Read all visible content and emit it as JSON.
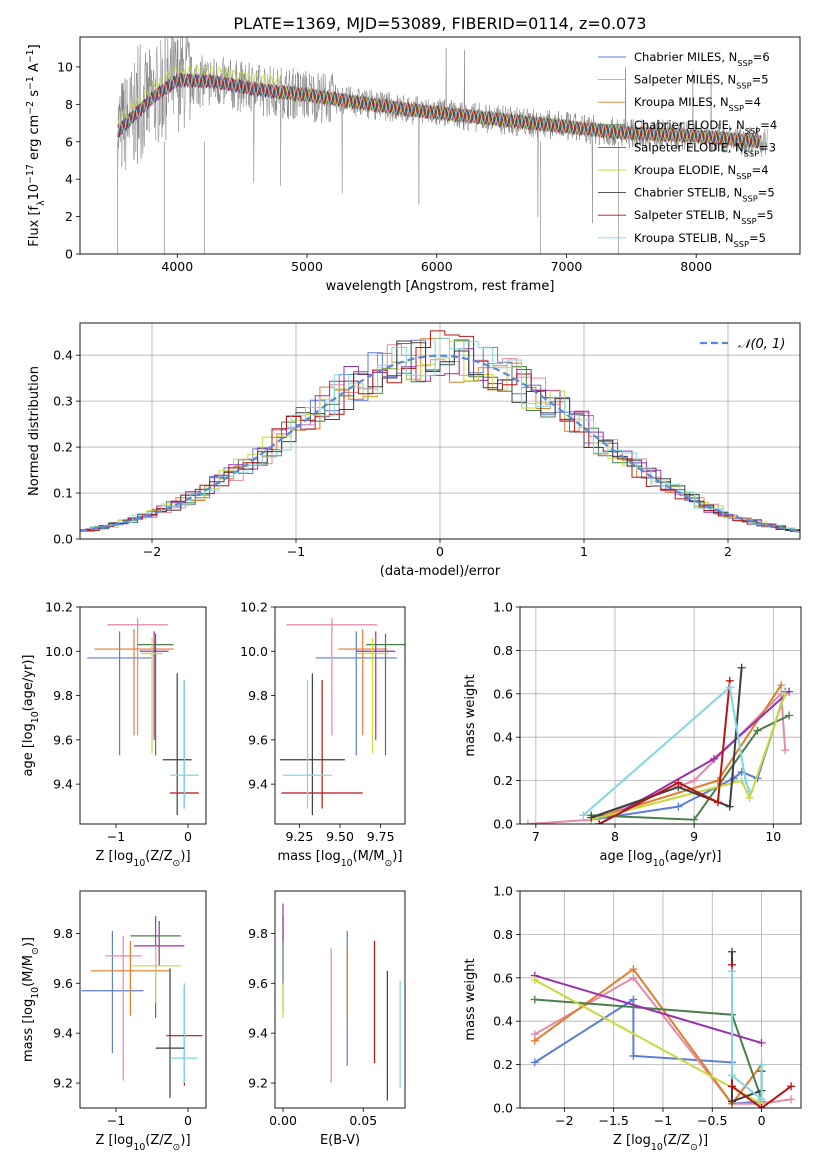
{
  "figure_title": "PLATE=1369, MJD=53089, FIBERID=0114, z=0.073",
  "palette": [
    "#5b7fd8",
    "#e48aa8",
    "#e07e2a",
    "#4a7f4a",
    "#9b2fae",
    "#c9d93b",
    "#3f3f3f",
    "#b71515",
    "#7fd7e0"
  ],
  "legend_names": [
    {
      "pre": "Chabrier MILES, N",
      "sub": "SSP",
      "post": "=6"
    },
    {
      "pre": "Salpeter MILES, N",
      "sub": "SSP",
      "post": "=5"
    },
    {
      "pre": "Kroupa MILES, N",
      "sub": "SSP",
      "post": "=4"
    },
    {
      "pre": "Chabrier ELODIE, N",
      "sub": "SSP",
      "post": "=4"
    },
    {
      "pre": "Salpeter ELODIE, N",
      "sub": "SSP",
      "post": "=3"
    },
    {
      "pre": "Kroupa ELODIE, N",
      "sub": "SSP",
      "post": "=4"
    },
    {
      "pre": "Chabrier STELIB, N",
      "sub": "SSP",
      "post": "=5"
    },
    {
      "pre": "Salpeter STELIB, N",
      "sub": "SSP",
      "post": "=5"
    },
    {
      "pre": "Kroupa STELIB, N",
      "sub": "SSP",
      "post": "=5"
    }
  ],
  "chart_data": [
    {
      "id": "spectrum",
      "type": "line",
      "xlabel": "wavelength [Angstrom, rest frame]",
      "ylabel": {
        "a": "Flux [f",
        "b": "λ",
        "c": "10",
        "d": "−17",
        "e": " erg cm",
        "f": "−2",
        "g": " s",
        "h": "−1",
        "i": " A",
        "j": "−1",
        "k": "]"
      },
      "xlim": [
        3250,
        8800
      ],
      "ylim": [
        0,
        11.6
      ],
      "xticks": [
        4000,
        5000,
        6000,
        7000,
        8000
      ],
      "yticks": [
        0,
        2,
        4,
        6,
        8,
        10
      ],
      "legend_position": "upper right",
      "data_color": "#808080",
      "continuum": [
        [
          3550,
          6.6
        ],
        [
          3800,
          8.3
        ],
        [
          4000,
          9.3
        ],
        [
          4300,
          9.2
        ],
        [
          4600,
          8.8
        ],
        [
          5000,
          8.5
        ],
        [
          5400,
          8.1
        ],
        [
          5800,
          7.7
        ],
        [
          6200,
          7.4
        ],
        [
          6600,
          7.1
        ],
        [
          7000,
          6.8
        ],
        [
          7400,
          6.5
        ],
        [
          8000,
          6.3
        ],
        [
          8500,
          6.0
        ]
      ],
      "data_start": 3540,
      "data_end": 8550,
      "model_start": 3540,
      "model_end": 8500
    },
    {
      "id": "residuals",
      "type": "histogram",
      "xlabel": "(data-model)/error",
      "ylabel": "Normed distribution",
      "xlim": [
        -2.5,
        2.5
      ],
      "ylim": [
        0,
        0.47
      ],
      "xticks": [
        -2,
        -1,
        0,
        1,
        2
      ],
      "yticks": [
        0.0,
        0.1,
        0.2,
        0.3,
        0.4
      ],
      "grid": true,
      "legend": {
        "label": "𝒩(0, 1)",
        "color": "#5a8ad6",
        "position": "upper right"
      },
      "bin_width": 0.1
    },
    {
      "id": "age_vs_Z",
      "type": "errorbar",
      "xlabel": {
        "pre": "Z [log",
        "sub": "10",
        "post": "(Z/Z",
        "sub2": "⊙",
        "post2": ")]"
      },
      "ylabel": {
        "pre": "age  [log",
        "sub": "10",
        "post": "(age/yr)]"
      },
      "xlim": [
        -1.5,
        0.25
      ],
      "ylim": [
        9.22,
        10.2
      ],
      "xticks": [
        -1,
        0
      ],
      "yticks": [
        9.4,
        9.6,
        9.8,
        10.0,
        10.2
      ],
      "points": [
        {
          "c": 0,
          "x": -0.95,
          "y": 9.97,
          "xerr": 0.45,
          "yerr": [
            0.44,
            0.12
          ]
        },
        {
          "c": 1,
          "x": -0.7,
          "y": 10.12,
          "xerr": 0.42,
          "yerr": [
            0.5,
            0.03
          ]
        },
        {
          "c": 2,
          "x": -0.75,
          "y": 10.01,
          "xerr": 0.55,
          "yerr": [
            0.39,
            0.09
          ]
        },
        {
          "c": 3,
          "x": -0.45,
          "y": 10.03,
          "xerr": 0.25,
          "yerr": [
            0.5,
            0.05
          ]
        },
        {
          "c": 4,
          "x": -0.47,
          "y": 10.0,
          "xerr": 0.2,
          "yerr": [
            0.4,
            0.09
          ]
        },
        {
          "c": 5,
          "x": -0.5,
          "y": 9.99,
          "xerr": 0.15,
          "yerr": [
            0.45,
            0.07
          ]
        },
        {
          "c": 6,
          "x": -0.15,
          "y": 9.51,
          "xerr": 0.2,
          "yerr": [
            0.25,
            0.39
          ]
        },
        {
          "c": 7,
          "x": -0.05,
          "y": 9.36,
          "xerr": 0.2,
          "yerr": [
            0.07,
            0.51
          ]
        },
        {
          "c": 8,
          "x": -0.05,
          "y": 9.44,
          "xerr": 0.2,
          "yerr": [
            0.15,
            0.43
          ]
        }
      ]
    },
    {
      "id": "age_vs_mass",
      "type": "errorbar",
      "xlabel": {
        "pre": "mass [log",
        "sub": "10",
        "post": "(M/M",
        "sub2": "⊙",
        "post2": ")]"
      },
      "ylabel": {
        "pre": "",
        "sub": "",
        "post": ""
      },
      "xlim": [
        9.1,
        9.9
      ],
      "ylim": [
        9.22,
        10.2
      ],
      "xticks": [
        9.25,
        9.5,
        9.75
      ],
      "xticklabels": [
        "9.25",
        "9.50",
        "9.75"
      ],
      "yticks": [
        9.4,
        9.6,
        9.8,
        10.0,
        10.2
      ],
      "points": [
        {
          "c": 0,
          "x": 9.6,
          "y": 9.97,
          "xerr": 0.25,
          "yerr": [
            0.44,
            0.12
          ]
        },
        {
          "c": 1,
          "x": 9.45,
          "y": 10.12,
          "xerr": 0.28,
          "yerr": [
            0.5,
            0.03
          ]
        },
        {
          "c": 2,
          "x": 9.64,
          "y": 10.01,
          "xerr": 0.15,
          "yerr": [
            0.39,
            0.09
          ]
        },
        {
          "c": 3,
          "x": 9.78,
          "y": 10.03,
          "xerr": 0.12,
          "yerr": [
            0.5,
            0.05
          ]
        },
        {
          "c": 4,
          "x": 9.72,
          "y": 10.0,
          "xerr": 0.12,
          "yerr": [
            0.4,
            0.09
          ]
        },
        {
          "c": 5,
          "x": 9.7,
          "y": 9.99,
          "xerr": 0.1,
          "yerr": [
            0.45,
            0.07
          ]
        },
        {
          "c": 6,
          "x": 9.33,
          "y": 9.51,
          "xerr": 0.2,
          "yerr": [
            0.25,
            0.39
          ]
        },
        {
          "c": 7,
          "x": 9.39,
          "y": 9.36,
          "xerr": 0.25,
          "yerr": [
            0.07,
            0.51
          ]
        },
        {
          "c": 8,
          "x": 9.3,
          "y": 9.44,
          "xerr": 0.15,
          "yerr": [
            0.15,
            0.43
          ]
        }
      ]
    },
    {
      "id": "weight_vs_age",
      "type": "line",
      "xlabel": {
        "pre": "age  [log",
        "sub": "10",
        "post": "(age/yr)]"
      },
      "ylabel": "mass weight",
      "xlim": [
        6.8,
        10.35
      ],
      "ylim": [
        0,
        1.0
      ],
      "xticks": [
        7,
        8,
        9,
        10
      ],
      "yticks": [
        0.0,
        0.2,
        0.4,
        0.6,
        0.8,
        1.0
      ],
      "grid": true,
      "series": [
        {
          "c": 0,
          "x": [
            7.7,
            8.8,
            9.5,
            9.6,
            9.8,
            10.15
          ],
          "y": [
            0.02,
            0.08,
            0.21,
            0.24,
            0.21,
            0.61
          ]
        },
        {
          "c": 1,
          "x": [
            6.9,
            7.7,
            9.0,
            10.1,
            10.15
          ],
          "y": [
            0.0,
            0.02,
            0.2,
            0.6,
            0.34
          ]
        },
        {
          "c": 2,
          "x": [
            7.7,
            9.3,
            10.1
          ],
          "y": [
            0.02,
            0.2,
            0.64
          ]
        },
        {
          "c": 3,
          "x": [
            7.7,
            9.0,
            9.8,
            10.2
          ],
          "y": [
            0.04,
            0.02,
            0.43,
            0.5
          ]
        },
        {
          "c": 4,
          "x": [
            7.8,
            9.25,
            10.2
          ],
          "y": [
            0.0,
            0.3,
            0.61
          ]
        },
        {
          "c": 5,
          "x": [
            7.7,
            9.6,
            9.7,
            10.15
          ],
          "y": [
            0.02,
            0.2,
            0.12,
            0.6
          ]
        },
        {
          "c": 6,
          "x": [
            7.7,
            8.8,
            9.45,
            9.6
          ],
          "y": [
            0.03,
            0.17,
            0.08,
            0.72
          ]
        },
        {
          "c": 7,
          "x": [
            7.8,
            8.8,
            9.3,
            9.45
          ],
          "y": [
            0.0,
            0.19,
            0.1,
            0.66
          ]
        },
        {
          "c": 8,
          "x": [
            7.6,
            9.45,
            9.65,
            9.7
          ],
          "y": [
            0.04,
            0.63,
            0.2,
            0.15
          ]
        }
      ]
    },
    {
      "id": "mass_vs_Z",
      "type": "errorbar",
      "xlabel": {
        "pre": "Z [log",
        "sub": "10",
        "post": "(Z/Z",
        "sub2": "⊙",
        "post2": ")]"
      },
      "ylabel": {
        "pre": "mass [log",
        "sub": "10",
        "post": "(M/M",
        "sub2": "⊙",
        "post2": ")]"
      },
      "xlim": [
        -1.5,
        0.25
      ],
      "ylim": [
        9.1,
        9.97
      ],
      "xticks": [
        -1,
        0
      ],
      "yticks": [
        9.2,
        9.4,
        9.6,
        9.8
      ],
      "points": [
        {
          "c": 0,
          "x": -1.05,
          "y": 9.57,
          "xerr": 0.43,
          "yerr": [
            0.25,
            0.24
          ]
        },
        {
          "c": 1,
          "x": -0.9,
          "y": 9.71,
          "xerr": 0.25,
          "yerr": [
            0.5,
            0.08
          ]
        },
        {
          "c": 2,
          "x": -0.8,
          "y": 9.65,
          "xerr": 0.55,
          "yerr": [
            0.18,
            0.12
          ]
        },
        {
          "c": 3,
          "x": -0.45,
          "y": 9.79,
          "xerr": 0.35,
          "yerr": [
            0.33,
            0.08
          ]
        },
        {
          "c": 4,
          "x": -0.4,
          "y": 9.75,
          "xerr": 0.35,
          "yerr": [
            0.08,
            0.1
          ]
        },
        {
          "c": 5,
          "x": -0.45,
          "y": 9.67,
          "xerr": 0.35,
          "yerr": [
            0.15,
            0.08
          ]
        },
        {
          "c": 6,
          "x": -0.25,
          "y": 9.34,
          "xerr": 0.2,
          "yerr": [
            0.2,
            0.32
          ]
        },
        {
          "c": 7,
          "x": -0.05,
          "y": 9.39,
          "xerr": 0.25,
          "yerr": [
            0.2,
            0.2
          ]
        },
        {
          "c": 8,
          "x": -0.05,
          "y": 9.3,
          "xerr": 0.18,
          "yerr": [
            0.1,
            0.3
          ]
        }
      ]
    },
    {
      "id": "mass_vs_ebv",
      "type": "errorbar",
      "xlabel": "E(B-V)",
      "ylabel": "",
      "xlim": [
        -0.005,
        0.076
      ],
      "ylim": [
        9.1,
        9.97
      ],
      "xticks": [
        0.0,
        0.05
      ],
      "xticklabels": [
        "0.00",
        "0.05"
      ],
      "yticks": [
        9.2,
        9.4,
        9.6,
        9.8
      ],
      "points": [
        {
          "c": 0,
          "x": 0.04,
          "y": 9.57,
          "xerr": 0,
          "yerr": [
            0.3,
            0.24
          ]
        },
        {
          "c": 1,
          "x": 0.03,
          "y": 9.46,
          "xerr": 0,
          "yerr": [
            0.26,
            0.28
          ]
        },
        {
          "c": 2,
          "x": 0.04,
          "y": 9.6,
          "xerr": 0,
          "yerr": [
            0.14,
            0.14
          ]
        },
        {
          "c": 3,
          "x": 0.0,
          "y": 9.79,
          "xerr": 0,
          "yerr": [
            0.3,
            0.08
          ]
        },
        {
          "c": 4,
          "x": 0.0,
          "y": 9.83,
          "xerr": 0,
          "yerr": [
            0.06,
            0.09
          ]
        },
        {
          "c": 5,
          "x": 0.0,
          "y": 9.5,
          "xerr": 0,
          "yerr": [
            0.04,
            0.1
          ]
        },
        {
          "c": 6,
          "x": 0.065,
          "y": 9.4,
          "xerr": 0,
          "yerr": [
            0.27,
            0.25
          ]
        },
        {
          "c": 7,
          "x": 0.057,
          "y": 9.52,
          "xerr": 0,
          "yerr": [
            0.24,
            0.25
          ]
        },
        {
          "c": 8,
          "x": 0.073,
          "y": 9.4,
          "xerr": 0,
          "yerr": [
            0.22,
            0.21
          ]
        }
      ]
    },
    {
      "id": "weight_vs_Z",
      "type": "line",
      "xlabel": {
        "pre": "Z [log",
        "sub": "10",
        "post": "(Z/Z",
        "sub2": "⊙",
        "post2": ")]"
      },
      "ylabel": "mass weight",
      "xlim": [
        -2.45,
        0.4
      ],
      "ylim": [
        0,
        1.0
      ],
      "xticks": [
        -2.0,
        -1.5,
        -1.0,
        -0.5,
        0.0
      ],
      "yticks": [
        0.0,
        0.2,
        0.4,
        0.6,
        0.8,
        1.0
      ],
      "grid": true,
      "series": [
        {
          "c": 0,
          "x": [
            -2.3,
            -1.3,
            -1.3,
            -0.3,
            -0.3,
            0.0
          ],
          "y": [
            0.21,
            0.5,
            0.24,
            0.21,
            0.02,
            0.03
          ]
        },
        {
          "c": 1,
          "x": [
            -2.3,
            -1.3,
            -0.3,
            0.0,
            0.3
          ],
          "y": [
            0.34,
            0.6,
            0.02,
            0.02,
            0.04
          ]
        },
        {
          "c": 2,
          "x": [
            -2.3,
            -1.3,
            -0.3,
            0.0
          ],
          "y": [
            0.31,
            0.64,
            0.02,
            0.2
          ]
        },
        {
          "c": 3,
          "x": [
            -2.3,
            -0.3,
            0.0
          ],
          "y": [
            0.5,
            0.43,
            0.04
          ]
        },
        {
          "c": 4,
          "x": [
            -2.3,
            0.0
          ],
          "y": [
            0.61,
            0.3
          ]
        },
        {
          "c": 5,
          "x": [
            -2.3,
            0.0,
            0.0
          ],
          "y": [
            0.59,
            0.02,
            0.2
          ]
        },
        {
          "c": 6,
          "x": [
            -0.3,
            -0.3,
            0.0,
            0.0
          ],
          "y": [
            0.72,
            0.03,
            0.08,
            0.17
          ]
        },
        {
          "c": 7,
          "x": [
            -0.3,
            -0.3,
            0.0,
            0.3
          ],
          "y": [
            0.66,
            0.1,
            0.0,
            0.1
          ]
        },
        {
          "c": 8,
          "x": [
            -0.3,
            -0.3,
            0.0,
            0.0
          ],
          "y": [
            0.63,
            0.15,
            0.04,
            0.2
          ]
        }
      ]
    }
  ]
}
